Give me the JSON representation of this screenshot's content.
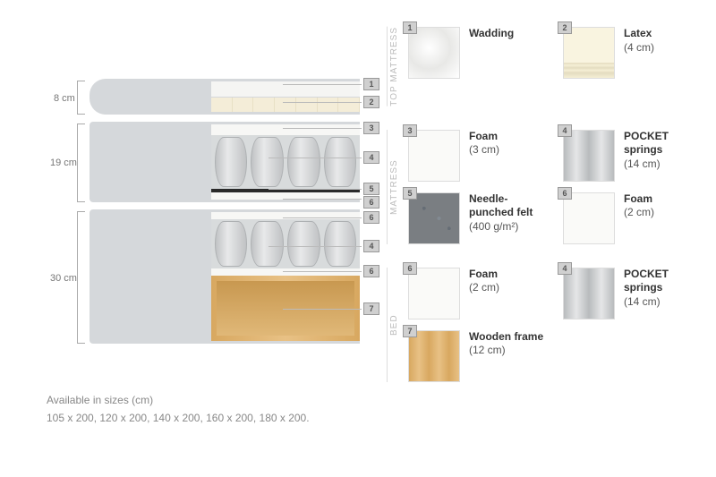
{
  "dimensions": {
    "top_mattress_cm": "8 cm",
    "mattress_cm": "19 cm",
    "bed_cm": "30 cm"
  },
  "diagram_callouts": {
    "top": [
      "1",
      "2"
    ],
    "mattress": [
      "3",
      "4",
      "5",
      "6"
    ],
    "bed": [
      "6",
      "4",
      "6",
      "7"
    ]
  },
  "legend_groups": [
    {
      "label": "TOP MATTRESS",
      "items": [
        {
          "num": "1",
          "name": "Wadding",
          "detail": "",
          "swatch": "sw-wadding"
        },
        {
          "num": "2",
          "name": "Latex",
          "detail": "(4 cm)",
          "swatch": "sw-latex"
        }
      ]
    },
    {
      "label": "MATTRESS",
      "items": [
        {
          "num": "3",
          "name": "Foam",
          "detail": "(3 cm)",
          "swatch": "sw-foam"
        },
        {
          "num": "4",
          "name": "POCKET springs",
          "detail": "(14 cm)",
          "swatch": "sw-pocket"
        },
        {
          "num": "5",
          "name": "Needle-punched felt",
          "detail": "(400 g/m²)",
          "swatch": "sw-felt"
        },
        {
          "num": "6",
          "name": "Foam",
          "detail": "(2 cm)",
          "swatch": "sw-foam"
        }
      ]
    },
    {
      "label": "BED",
      "items": [
        {
          "num": "6",
          "name": "Foam",
          "detail": "(2 cm)",
          "swatch": "sw-foam"
        },
        {
          "num": "4",
          "name": "POCKET springs",
          "detail": "(14 cm)",
          "swatch": "sw-pocket"
        },
        {
          "num": "7",
          "name": "Wooden frame",
          "detail": "(12 cm)",
          "swatch": "sw-wood"
        }
      ]
    }
  ],
  "available": {
    "title": "Available in sizes (cm)",
    "sizes": "105 x 200, 120 x 200, 140 x 200, 160 x 200, 180 x 200."
  },
  "colors": {
    "grey_body": "#d5d8db",
    "wood": "#d8a860",
    "felt": "#7a7e82",
    "text_muted": "#888"
  }
}
